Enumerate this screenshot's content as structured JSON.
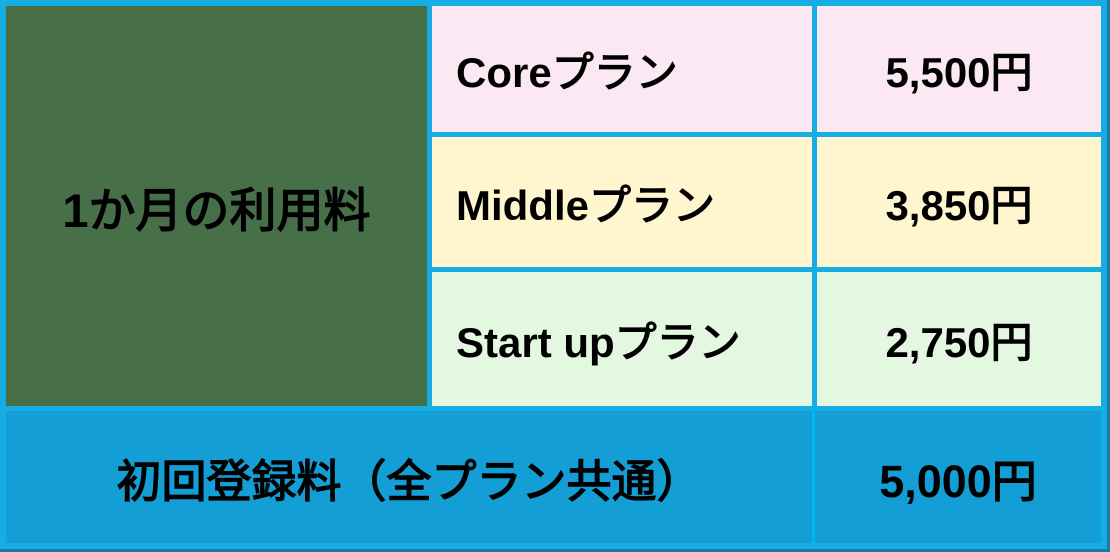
{
  "colors": {
    "border": "#16ace4",
    "edge_dark": "#1e7a9e",
    "header_bg": "#477048",
    "row_core_bg": "#fce8f2",
    "row_middle_bg": "#fff6d0",
    "row_startup_bg": "#e4f8e1",
    "footer_bg": "#149ed6",
    "footer_divider": "#00b7f0",
    "text": "#000000"
  },
  "table": {
    "row_header": "1か月の利用料",
    "plans": [
      {
        "name": "Coreプラン",
        "price": "5,500円"
      },
      {
        "name": "Middleプラン",
        "price": "3,850円"
      },
      {
        "name": "Start upプラン",
        "price": "2,750円"
      }
    ],
    "footer": {
      "label": "初回登録料（全プラン共通）",
      "price": "5,000円"
    }
  },
  "chart_data": {
    "type": "table",
    "row_header": "1か月の利用料",
    "rows": [
      {
        "plan": "Coreプラン",
        "price_label": "5,500円",
        "price_jpy": 5500
      },
      {
        "plan": "Middleプラン",
        "price_label": "3,850円",
        "price_jpy": 3850
      },
      {
        "plan": "Start upプラン",
        "price_label": "2,750円",
        "price_jpy": 2750
      }
    ],
    "footer": {
      "label": "初回登録料（全プラン共通）",
      "price_label": "5,000円",
      "price_jpy": 5000
    }
  }
}
